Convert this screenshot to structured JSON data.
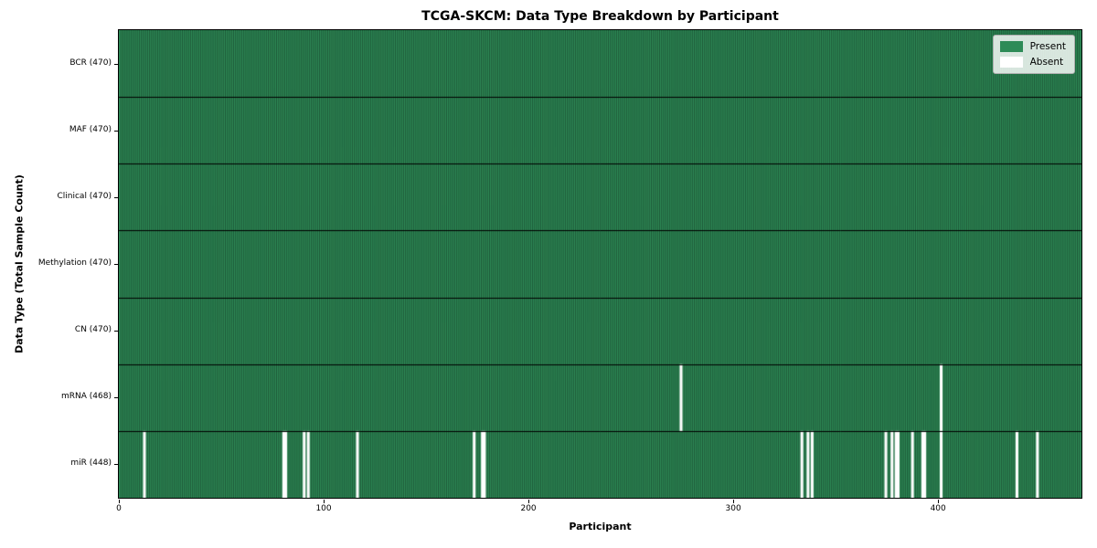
{
  "chart_data": {
    "type": "heatmap",
    "title": "TCGA-SKCM: Data Type Breakdown by Participant",
    "xlabel": "Participant",
    "ylabel": "Data Type (Total Sample Count)",
    "n_participants": 470,
    "x_ticks": [
      0,
      100,
      200,
      300,
      400
    ],
    "rows": [
      {
        "label": "BCR (470)",
        "data_type": "BCR",
        "present_count": 470,
        "absent_participants": []
      },
      {
        "label": "MAF (470)",
        "data_type": "MAF",
        "present_count": 470,
        "absent_participants": []
      },
      {
        "label": "Clinical (470)",
        "data_type": "Clinical",
        "present_count": 470,
        "absent_participants": []
      },
      {
        "label": "Methylation (470)",
        "data_type": "Methylation",
        "present_count": 470,
        "absent_participants": []
      },
      {
        "label": "CN (470)",
        "data_type": "CN",
        "present_count": 470,
        "absent_participants": []
      },
      {
        "label": "mRNA (468)",
        "data_type": "mRNA",
        "present_count": 468,
        "absent_participants": [
          274,
          401
        ]
      },
      {
        "label": "miR (448)",
        "data_type": "miR",
        "present_count": 448,
        "absent_participants": [
          12,
          80,
          81,
          90,
          92,
          116,
          173,
          177,
          178,
          333,
          336,
          338,
          374,
          377,
          379,
          380,
          387,
          392,
          393,
          401,
          438,
          448
        ]
      }
    ],
    "legend": [
      {
        "label": "Present",
        "color": "#2e8b57"
      },
      {
        "label": "Absent",
        "color": "#ffffff"
      }
    ],
    "colors": {
      "present": "#2e8b57",
      "absent": "#ffffff",
      "cell_edge": "rgba(0,0,0,0.5)",
      "row_separator": "#000000",
      "plot_border": "#000000"
    },
    "legend_position": "upper right",
    "grid": false
  }
}
